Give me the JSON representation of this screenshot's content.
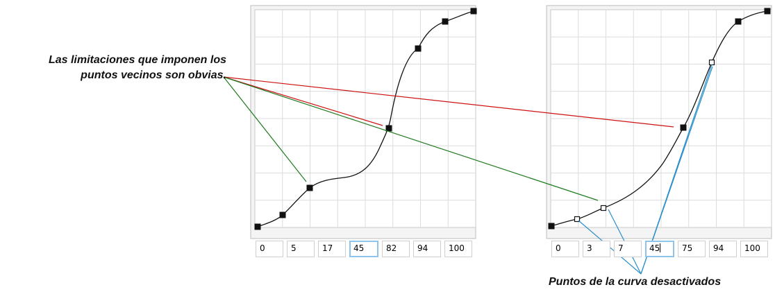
{
  "annotations": {
    "left_caption": [
      "Las limitaciones que imponen los",
      "puntos vecinos son obvias."
    ],
    "bottom_caption": "Puntos de la curva desactivados"
  },
  "colors": {
    "curve": "#111111",
    "grid": "#dcdcdc",
    "grid_bg": "#ffffff",
    "panel_border": "#bdbdbd",
    "red_leader": "#cc1111",
    "green_leader": "#1f7a1f",
    "blue_leader": "#2a8ec9",
    "active_field_border": "#8cc4ec"
  },
  "panels": [
    {
      "name": "curve-panel-left",
      "points": [
        {
          "input": 0,
          "output": 0,
          "active": true
        },
        {
          "input": 5,
          "output": 5,
          "active": true
        },
        {
          "input": 17,
          "output": 18,
          "active": true
        },
        {
          "input": 45,
          "output": 45,
          "active": true
        },
        {
          "input": 82,
          "output": 82,
          "active": true
        },
        {
          "input": 94,
          "output": 94,
          "active": true
        },
        {
          "input": 100,
          "output": 100,
          "active": true
        }
      ],
      "fields": [
        "0",
        "5",
        "17",
        "45",
        "82",
        "94",
        "100"
      ],
      "active_field": 3
    },
    {
      "name": "curve-panel-right",
      "points": [
        {
          "input": 0,
          "output": 0,
          "active": true
        },
        {
          "input": 3,
          "output": 3,
          "active": false
        },
        {
          "input": 7,
          "output": 7,
          "active": false
        },
        {
          "input": 45,
          "output": 45,
          "active": true
        },
        {
          "input": 75,
          "output": 75,
          "active": false
        },
        {
          "input": 94,
          "output": 94,
          "active": true
        },
        {
          "input": 100,
          "output": 100,
          "active": true
        }
      ],
      "fields": [
        "0",
        "3",
        "7",
        "45",
        "75",
        "94",
        "100"
      ],
      "active_field": 3
    }
  ]
}
